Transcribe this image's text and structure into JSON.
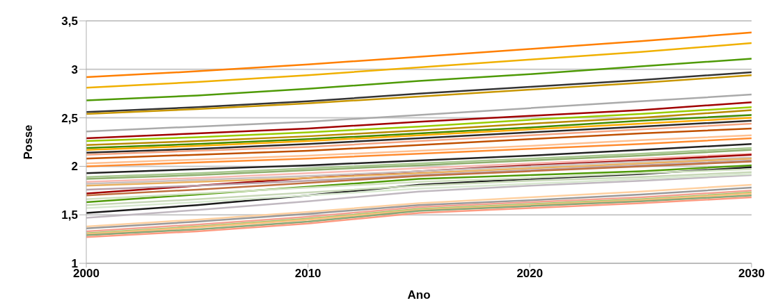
{
  "chart_data": {
    "type": "line",
    "xlabel": "Ano",
    "ylabel": "Posse",
    "x": [
      2000,
      2005,
      2010,
      2015,
      2020,
      2025,
      2030
    ],
    "xlim": [
      2000,
      2030
    ],
    "xticks": [
      2000,
      2010,
      2020,
      2030
    ],
    "ylim": [
      1,
      3.5
    ],
    "yticks": [
      {
        "value": 1,
        "label": "1"
      },
      {
        "value": 1.5,
        "label": "1,5"
      },
      {
        "value": 2,
        "label": "2"
      },
      {
        "value": 2.5,
        "label": "2,5"
      },
      {
        "value": 3,
        "label": "3"
      },
      {
        "value": 3.5,
        "label": "3,5"
      }
    ],
    "grid": "y",
    "legend": false,
    "marker": "none",
    "line_style": "solid",
    "series": [
      {
        "color": "#ff7f00",
        "values": [
          2.92,
          2.98,
          3.05,
          3.13,
          3.21,
          3.29,
          3.38
        ]
      },
      {
        "color": "#f0b000",
        "values": [
          2.81,
          2.87,
          2.94,
          3.02,
          3.1,
          3.18,
          3.27
        ]
      },
      {
        "color": "#4e9a06",
        "values": [
          2.68,
          2.73,
          2.8,
          2.88,
          2.95,
          3.03,
          3.11
        ]
      },
      {
        "color": "#333333",
        "values": [
          2.56,
          2.61,
          2.67,
          2.75,
          2.82,
          2.89,
          2.97
        ]
      },
      {
        "color": "#c89600",
        "values": [
          2.54,
          2.59,
          2.65,
          2.72,
          2.79,
          2.86,
          2.94
        ]
      },
      {
        "color": "#aaaaaa",
        "values": [
          2.36,
          2.41,
          2.46,
          2.53,
          2.6,
          2.67,
          2.74
        ]
      },
      {
        "color": "#a00000",
        "values": [
          2.29,
          2.34,
          2.39,
          2.46,
          2.52,
          2.58,
          2.66
        ]
      },
      {
        "color": "#99cc00",
        "values": [
          2.26,
          2.3,
          2.35,
          2.41,
          2.48,
          2.54,
          2.61
        ]
      },
      {
        "color": "#b88a00",
        "values": [
          2.22,
          2.26,
          2.31,
          2.37,
          2.44,
          2.5,
          2.58
        ]
      },
      {
        "color": "#3f8a00",
        "values": [
          2.19,
          2.23,
          2.28,
          2.34,
          2.4,
          2.47,
          2.53
        ]
      },
      {
        "color": "#ffaa00",
        "values": [
          2.17,
          2.21,
          2.26,
          2.32,
          2.38,
          2.44,
          2.5
        ]
      },
      {
        "color": "#2a2a2a",
        "values": [
          2.14,
          2.18,
          2.23,
          2.29,
          2.35,
          2.41,
          2.47
        ]
      },
      {
        "color": "#f4a582",
        "values": [
          2.12,
          2.16,
          2.2,
          2.26,
          2.32,
          2.38,
          2.44
        ]
      },
      {
        "color": "#c05000",
        "values": [
          2.08,
          2.12,
          2.16,
          2.22,
          2.28,
          2.34,
          2.39
        ]
      },
      {
        "color": "#ffc090",
        "values": [
          2.03,
          2.07,
          2.11,
          2.16,
          2.21,
          2.27,
          2.32
        ]
      },
      {
        "color": "#ff8c30",
        "values": [
          2,
          2.04,
          2.08,
          2.13,
          2.18,
          2.23,
          2.29
        ]
      },
      {
        "color": "#222222",
        "values": [
          1.93,
          1.97,
          2.01,
          2.06,
          2.11,
          2.17,
          2.23
        ]
      },
      {
        "color": "#a8c890",
        "values": [
          1.89,
          1.93,
          1.98,
          2.03,
          2.08,
          2.13,
          2.19
        ]
      },
      {
        "color": "#8fb070",
        "values": [
          1.87,
          1.91,
          1.96,
          2.01,
          2.06,
          2.11,
          2.17
        ]
      },
      {
        "color": "#f8b8b0",
        "values": [
          1.84,
          1.88,
          1.93,
          1.98,
          2.03,
          2.08,
          2.13
        ]
      },
      {
        "color": "#a00000",
        "values": [
          1.72,
          1.8,
          1.88,
          1.95,
          2.01,
          2.06,
          2.12
        ]
      },
      {
        "color": "#c8c0c0",
        "values": [
          1.82,
          1.86,
          1.9,
          1.95,
          2,
          2.05,
          2.09
        ]
      },
      {
        "color": "#e8b060",
        "values": [
          1.8,
          1.84,
          1.88,
          1.93,
          1.98,
          2.03,
          2.08
        ]
      },
      {
        "color": "#b8a0a8",
        "values": [
          1.76,
          1.8,
          1.85,
          1.91,
          1.96,
          2.01,
          2.06
        ]
      },
      {
        "color": "#c07040",
        "values": [
          1.7,
          1.76,
          1.83,
          1.9,
          1.95,
          2,
          2.05
        ]
      },
      {
        "color": "#4e9a06",
        "values": [
          1.63,
          1.71,
          1.79,
          1.87,
          1.91,
          1.95,
          2.01
        ]
      },
      {
        "color": "#1a1a1a",
        "values": [
          1.52,
          1.6,
          1.7,
          1.81,
          1.87,
          1.92,
          1.99
        ]
      },
      {
        "color": "#d0e0c0",
        "values": [
          1.66,
          1.72,
          1.78,
          1.84,
          1.88,
          1.93,
          1.97
        ]
      },
      {
        "color": "#c8d8b8",
        "values": [
          1.6,
          1.66,
          1.73,
          1.8,
          1.85,
          1.89,
          1.94
        ]
      },
      {
        "color": "#c0b8c0",
        "values": [
          1.47,
          1.55,
          1.64,
          1.74,
          1.8,
          1.85,
          1.91
        ]
      },
      {
        "color": "#d8e8d0",
        "values": [
          1.57,
          1.63,
          1.7,
          1.77,
          1.82,
          1.87,
          1.92
        ]
      },
      {
        "color": "#ffd0a0",
        "values": [
          1.38,
          1.45,
          1.53,
          1.62,
          1.68,
          1.74,
          1.81
        ]
      },
      {
        "color": "#999999",
        "values": [
          1.36,
          1.43,
          1.51,
          1.6,
          1.65,
          1.71,
          1.78
        ]
      },
      {
        "color": "#f4a090",
        "values": [
          1.33,
          1.4,
          1.48,
          1.58,
          1.63,
          1.68,
          1.75
        ]
      },
      {
        "color": "#a8c870",
        "values": [
          1.31,
          1.38,
          1.46,
          1.56,
          1.61,
          1.66,
          1.73
        ]
      },
      {
        "color": "#ffc080",
        "values": [
          1.3,
          1.37,
          1.45,
          1.55,
          1.6,
          1.65,
          1.72
        ]
      },
      {
        "color": "#88a878",
        "values": [
          1.29,
          1.35,
          1.43,
          1.54,
          1.59,
          1.64,
          1.7
        ]
      },
      {
        "color": "#ff9a80",
        "values": [
          1.27,
          1.33,
          1.41,
          1.52,
          1.57,
          1.62,
          1.68
        ]
      }
    ]
  }
}
